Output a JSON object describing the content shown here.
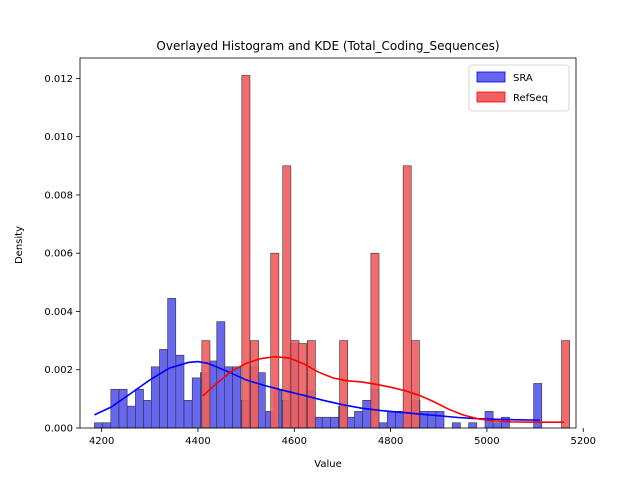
{
  "chart_data": {
    "type": "histogram",
    "title": "Overlayed Histogram and KDE (Total_Coding_Sequences)",
    "xlabel": "Value",
    "ylabel": "Density",
    "xlim": [
      4155,
      5185
    ],
    "ylim": [
      0,
      0.0127
    ],
    "xticks": [
      4200,
      4400,
      4600,
      4800,
      5000,
      5200
    ],
    "yticks": [
      0.0,
      0.002,
      0.004,
      0.006,
      0.008,
      0.01,
      0.012
    ],
    "ytick_labels": [
      "0.000",
      "0.002",
      "0.004",
      "0.006",
      "0.008",
      "0.010",
      "0.012"
    ],
    "legend_position": "top-right",
    "grid": false,
    "series": [
      {
        "name": "SRA",
        "color": "#0000ff",
        "bar_color": "#6666ee",
        "bin_width": 16.9,
        "bins": [
          [
            4185,
            0.00018
          ],
          [
            4202,
            0.00018
          ],
          [
            4219,
            0.00133
          ],
          [
            4236,
            0.00133
          ],
          [
            4253,
            0.00075
          ],
          [
            4270,
            0.00133
          ],
          [
            4287,
            0.00095
          ],
          [
            4303,
            0.0021
          ],
          [
            4320,
            0.0027
          ],
          [
            4337,
            0.00445
          ],
          [
            4354,
            0.0025
          ],
          [
            4371,
            0.00095
          ],
          [
            4388,
            0.00172
          ],
          [
            4405,
            0.0019
          ],
          [
            4422,
            0.0023
          ],
          [
            4439,
            0.00365
          ],
          [
            4455,
            0.0021
          ],
          [
            4472,
            0.0021
          ],
          [
            4489,
            0.00095
          ],
          [
            4506,
            0.0021
          ],
          [
            4523,
            0.0019
          ],
          [
            4540,
            0.00057
          ],
          [
            4557,
            0.0013
          ],
          [
            4574,
            0.00095
          ],
          [
            4590,
            0.0029
          ],
          [
            4607,
            0.00115
          ],
          [
            4624,
            0.0013
          ],
          [
            4641,
            0.00037
          ],
          [
            4658,
            0.00037
          ],
          [
            4675,
            0.00037
          ],
          [
            4692,
            0.00075
          ],
          [
            4709,
            0.00037
          ],
          [
            4725,
            0.00057
          ],
          [
            4742,
            0.00095
          ],
          [
            4759,
            0.00133
          ],
          [
            4776,
            0.00018
          ],
          [
            4793,
            0.00057
          ],
          [
            4810,
            0.00057
          ],
          [
            4827,
            0.00057
          ],
          [
            4844,
            0.00095
          ],
          [
            4861,
            0.00057
          ],
          [
            4877,
            0.00057
          ],
          [
            4894,
            0.00057
          ],
          [
            4928,
            0.00018
          ],
          [
            4962,
            0.00018
          ],
          [
            4996,
            0.00057
          ],
          [
            5013,
            0.00018
          ],
          [
            5030,
            0.00037
          ],
          [
            5097,
            0.00153
          ]
        ],
        "kde": [
          [
            4185,
            0.00045
          ],
          [
            4220,
            0.00072
          ],
          [
            4260,
            0.00118
          ],
          [
            4300,
            0.00165
          ],
          [
            4340,
            0.00205
          ],
          [
            4380,
            0.00225
          ],
          [
            4400,
            0.00228
          ],
          [
            4420,
            0.00222
          ],
          [
            4460,
            0.00195
          ],
          [
            4500,
            0.00165
          ],
          [
            4540,
            0.00145
          ],
          [
            4580,
            0.00128
          ],
          [
            4620,
            0.00112
          ],
          [
            4660,
            0.00095
          ],
          [
            4700,
            0.0008
          ],
          [
            4740,
            0.00068
          ],
          [
            4780,
            0.0006
          ],
          [
            4820,
            0.00054
          ],
          [
            4860,
            0.00048
          ],
          [
            4900,
            0.00042
          ],
          [
            4940,
            0.00036
          ],
          [
            4980,
            0.00032
          ],
          [
            5020,
            0.0003
          ],
          [
            5060,
            0.00028
          ],
          [
            5110,
            0.00027
          ]
        ]
      },
      {
        "name": "RefSeq",
        "color": "#ff0000",
        "bar_color": "#f06060",
        "bin_width": 16.9,
        "bins": [
          [
            4408,
            0.003
          ],
          [
            4491,
            0.0121
          ],
          [
            4509,
            0.003
          ],
          [
            4551,
            0.006
          ],
          [
            4576,
            0.009
          ],
          [
            4593,
            0.003
          ],
          [
            4609,
            0.0029
          ],
          [
            4627,
            0.003
          ],
          [
            4694,
            0.003
          ],
          [
            4759,
            0.006
          ],
          [
            4776,
            0.0
          ],
          [
            4826,
            0.009
          ],
          [
            4843,
            0.003
          ],
          [
            5155,
            0.003
          ]
        ],
        "kde": [
          [
            4410,
            0.0011
          ],
          [
            4440,
            0.00155
          ],
          [
            4470,
            0.00195
          ],
          [
            4500,
            0.00222
          ],
          [
            4530,
            0.00238
          ],
          [
            4560,
            0.00245
          ],
          [
            4590,
            0.0024
          ],
          [
            4620,
            0.0022
          ],
          [
            4650,
            0.00192
          ],
          [
            4680,
            0.00172
          ],
          [
            4710,
            0.00162
          ],
          [
            4740,
            0.00158
          ],
          [
            4770,
            0.0015
          ],
          [
            4800,
            0.0014
          ],
          [
            4830,
            0.00128
          ],
          [
            4860,
            0.00112
          ],
          [
            4890,
            0.0009
          ],
          [
            4920,
            0.00065
          ],
          [
            4950,
            0.00045
          ],
          [
            4980,
            0.00032
          ],
          [
            5010,
            0.00025
          ],
          [
            5050,
            0.00021
          ],
          [
            5100,
            0.0002
          ],
          [
            5160,
            0.0002
          ]
        ]
      }
    ]
  }
}
